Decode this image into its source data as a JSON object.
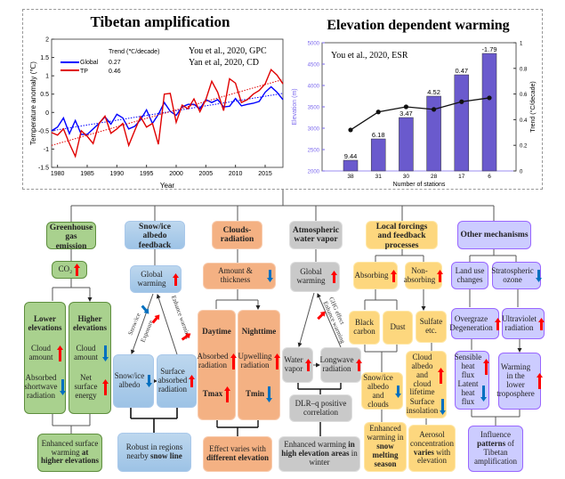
{
  "colors": {
    "up": "#ff0000",
    "down": "#0070c0",
    "global": "#0000ff",
    "tp": "#e00000",
    "bar": "#6a5acd",
    "axis_left": "#7b68ee"
  },
  "chart_data": [
    {
      "type": "line",
      "title": "Tibetan amplification",
      "xlabel": "Year",
      "ylabel": "Temperature anomaly (℃)",
      "xlim": [
        1979,
        2018
      ],
      "ylim": [
        -1.5,
        2
      ],
      "xticks": [
        1980,
        1985,
        1990,
        1995,
        2000,
        2005,
        2010,
        2015
      ],
      "yticks": [
        "-1.5",
        "-1",
        "-0.5",
        "0",
        "0.5",
        "1",
        "1.5",
        "2"
      ],
      "legend_title": "Trend (℃/decade)",
      "legend_position": "top-left",
      "annotations": [
        "You et al., 2020, GPC",
        "Yan et al, 2020, CD"
      ],
      "x_start": 1979,
      "series": [
        {
          "name": "Global",
          "trend": "0.27",
          "trend_line": [
            -0.5,
            0.52
          ],
          "values": [
            -0.5,
            -0.4,
            -0.15,
            -0.58,
            -0.22,
            -0.6,
            -0.6,
            -0.45,
            -0.3,
            -0.12,
            -0.32,
            -0.05,
            -0.15,
            -0.45,
            -0.38,
            -0.2,
            0.07,
            -0.3,
            -0.05,
            0.27,
            0.03,
            -0.08,
            0.15,
            0.22,
            0.22,
            0.1,
            0.35,
            0.27,
            0.35,
            0.15,
            0.17,
            0.38,
            0.18,
            0.22,
            0.25,
            0.3,
            0.55,
            0.7,
            0.55,
            0.35
          ]
        },
        {
          "name": "TP",
          "trend": "0.46",
          "trend_line": [
            -0.9,
            0.9
          ],
          "values": [
            -0.55,
            -0.62,
            -0.45,
            -0.85,
            -1.2,
            -0.5,
            -0.65,
            -0.85,
            -0.3,
            -0.1,
            -0.57,
            -0.45,
            -0.3,
            -0.9,
            -0.5,
            -0.12,
            -0.4,
            -0.3,
            -0.87,
            0.5,
            0.52,
            -0.27,
            0.2,
            0.1,
            0.37,
            0.02,
            0.35,
            0.85,
            0.55,
            0.05,
            0.92,
            0.8,
            0.27,
            0.35,
            0.5,
            0.6,
            0.78,
            1.17,
            1.02,
            0.78
          ]
        }
      ]
    },
    {
      "type": "bar",
      "title": "Elevation dependent warming",
      "xlabel": "Number of stations",
      "ylabel": "Elevation (m)",
      "y2label": "Trend (°C/decade)",
      "ylim": [
        2000,
        5000
      ],
      "y2lim": [
        0,
        1
      ],
      "yticks": [
        "2000",
        "2500",
        "3000",
        "3500",
        "4000",
        "4500",
        "5000"
      ],
      "y2ticks": [
        "0",
        "0.2",
        "0.4",
        "0.6",
        "0.8",
        "1"
      ],
      "annotation": "You et al., 2020, ESR",
      "categories": [
        "38",
        "31",
        "30",
        "28",
        "17",
        "6"
      ],
      "values": [
        2250,
        2750,
        3250,
        3750,
        4250,
        4750
      ],
      "bar_labels": [
        "9.44",
        "6.18",
        "3.47",
        "4.52",
        "0.47",
        "-1.79"
      ],
      "trend": [
        0.32,
        0.46,
        0.5,
        0.48,
        0.54,
        0.57
      ]
    }
  ],
  "flow": {
    "labels": {
      "snowice": "Snow/ice",
      "exposure": "Exposure",
      "enhance1": "Enhance warming",
      "ghg": "GHG effect",
      "enhance2": "Enhance warming"
    },
    "boxes": {
      "ghg": {
        "rows": [
          {
            "segs": [
              {
                "t": "Greenhouse gas emission",
                "b": true
              }
            ]
          }
        ]
      },
      "co2": {
        "rows": [
          {
            "segs": [
              {
                "t": "CO₂"
              }
            ],
            "arrow": "up"
          }
        ]
      },
      "lower": {
        "rows": [
          {
            "segs": [
              {
                "t": "Lower elevations",
                "b": true
              }
            ]
          },
          {
            "segs": [
              {
                "t": "Cloud amount"
              }
            ],
            "arrow": "up"
          },
          {
            "segs": [
              {
                "t": "Absorbed shortwave radiation"
              }
            ],
            "arrow": "down"
          }
        ]
      },
      "higher": {
        "rows": [
          {
            "segs": [
              {
                "t": "Higher elevations",
                "b": true
              }
            ]
          },
          {
            "segs": [
              {
                "t": "Cloud amount"
              }
            ],
            "arrow": "down"
          },
          {
            "segs": [
              {
                "t": "Net surface energy"
              }
            ],
            "arrow": "up"
          }
        ]
      },
      "ghg_result": {
        "rows": [
          {
            "segs": [
              {
                "t": "Enhanced surface warming "
              },
              {
                "t": "at higher elevations",
                "b": true
              }
            ]
          }
        ]
      },
      "snow_title": {
        "rows": [
          {
            "segs": [
              {
                "t": "Snow/ice albedo feedback",
                "b": true
              }
            ]
          }
        ]
      },
      "snow_gw": {
        "rows": [
          {
            "segs": [
              {
                "t": "Global warming"
              }
            ],
            "arrow": "up"
          }
        ]
      },
      "snow_albedo": {
        "rows": [
          {
            "segs": [
              {
                "t": "Snow/ice albedo"
              }
            ],
            "arrow": "down"
          }
        ]
      },
      "surf_abs": {
        "rows": [
          {
            "segs": [
              {
                "t": "Surface absorbed radiation"
              }
            ],
            "arrow": "up"
          }
        ]
      },
      "snow_result": {
        "rows": [
          {
            "segs": [
              {
                "t": "Robust in regions nearby "
              },
              {
                "t": "snow line",
                "b": true
              }
            ]
          }
        ]
      },
      "cloud_title": {
        "rows": [
          {
            "segs": [
              {
                "t": "Clouds-radiation",
                "b": true
              }
            ]
          }
        ]
      },
      "cloud_amt": {
        "rows": [
          {
            "segs": [
              {
                "t": "Amount & thickness"
              }
            ],
            "arrow": "down"
          }
        ]
      },
      "daytime": {
        "rows": [
          {
            "segs": [
              {
                "t": "Daytime",
                "b": true
              }
            ]
          },
          {
            "segs": [
              {
                "t": "Absorbed radiation"
              }
            ],
            "arrow": "up"
          },
          {
            "segs": [
              {
                "t": "Tmax",
                "b": true
              }
            ],
            "arrow": "up"
          }
        ]
      },
      "nighttime": {
        "rows": [
          {
            "segs": [
              {
                "t": "Nighttime",
                "b": true
              }
            ]
          },
          {
            "segs": [
              {
                "t": "Upwelling radiation"
              }
            ],
            "arrow": "up"
          },
          {
            "segs": [
              {
                "t": "Tmin",
                "b": true
              }
            ],
            "arrow": "down"
          }
        ]
      },
      "cloud_result": {
        "rows": [
          {
            "segs": [
              {
                "t": "Effect varies with "
              },
              {
                "t": "different elevation",
                "b": true
              }
            ]
          }
        ]
      },
      "wv_title": {
        "rows": [
          {
            "segs": [
              {
                "t": "Atmospheric water vapor",
                "b": true
              }
            ]
          }
        ]
      },
      "wv_gw": {
        "rows": [
          {
            "segs": [
              {
                "t": "Global warming"
              }
            ],
            "arrow": "up"
          }
        ]
      },
      "water_vapor": {
        "rows": [
          {
            "segs": [
              {
                "t": "Water vapor"
              }
            ],
            "arrow": "up"
          }
        ]
      },
      "longwave": {
        "rows": [
          {
            "segs": [
              {
                "t": "Longwave radiation"
              }
            ],
            "arrow": "up"
          }
        ]
      },
      "dlr": {
        "rows": [
          {
            "segs": [
              {
                "t": "DLR–q positive correlation"
              }
            ]
          }
        ]
      },
      "wv_result": {
        "rows": [
          {
            "segs": [
              {
                "t": "Enhanced warming "
              },
              {
                "t": "in high elevation areas",
                "b": true
              },
              {
                "t": " in winter"
              }
            ]
          }
        ]
      },
      "local_title": {
        "rows": [
          {
            "segs": [
              {
                "t": "Local forcings and feedback processes",
                "b": true
              }
            ]
          }
        ]
      },
      "absorbing": {
        "rows": [
          {
            "segs": [
              {
                "t": "Absorbing"
              }
            ],
            "arrow": "up"
          }
        ]
      },
      "nonabs": {
        "rows": [
          {
            "segs": [
              {
                "t": "Non-absorbing"
              }
            ],
            "arrow": "up"
          }
        ]
      },
      "bc": {
        "rows": [
          {
            "segs": [
              {
                "t": "Black carbon"
              }
            ]
          }
        ]
      },
      "dust": {
        "rows": [
          {
            "segs": [
              {
                "t": "Dust"
              }
            ]
          }
        ]
      },
      "sulfate": {
        "rows": [
          {
            "segs": [
              {
                "t": "Sulfate etc."
              }
            ]
          }
        ]
      },
      "snow_clouds": {
        "rows": [
          {
            "segs": [
              {
                "t": "Snow/ice albedo and clouds"
              }
            ],
            "arrow": "down"
          }
        ]
      },
      "cloud_albedo": {
        "rows": [
          {
            "segs": [
              {
                "t": "Cloud albedo and cloud lifetime"
              }
            ],
            "arrow": "up"
          },
          {
            "segs": [
              {
                "t": "Surface insolation"
              }
            ],
            "arrow": "down"
          }
        ]
      },
      "local_res1": {
        "rows": [
          {
            "segs": [
              {
                "t": "Enhanced warming in "
              },
              {
                "t": "snow melting season",
                "b": true
              }
            ]
          }
        ]
      },
      "local_res2": {
        "rows": [
          {
            "segs": [
              {
                "t": "Aerosol concentration "
              },
              {
                "t": "varies",
                "b": true
              },
              {
                "t": " with elevation"
              }
            ]
          }
        ]
      },
      "other_title": {
        "rows": [
          {
            "segs": [
              {
                "t": "Other mechanisms",
                "b": true
              }
            ]
          }
        ]
      },
      "landuse": {
        "rows": [
          {
            "segs": [
              {
                "t": "Land use changes"
              }
            ]
          }
        ]
      },
      "ozone": {
        "rows": [
          {
            "segs": [
              {
                "t": "Stratospheric ozone"
              }
            ],
            "arrow": "down"
          }
        ]
      },
      "overgraze": {
        "rows": [
          {
            "segs": [
              {
                "t": "Overgraze Degeneration"
              }
            ],
            "arrow": "up"
          }
        ]
      },
      "uv": {
        "rows": [
          {
            "segs": [
              {
                "t": "Ultraviolet radiation"
              }
            ],
            "arrow": "up"
          }
        ]
      },
      "heatflux": {
        "rows": [
          {
            "segs": [
              {
                "t": "Sensible heat flux"
              }
            ],
            "arrow": "up"
          },
          {
            "segs": [
              {
                "t": "Latent heat flux"
              }
            ],
            "arrow": "down"
          }
        ]
      },
      "lowertrop": {
        "rows": [
          {
            "segs": [
              {
                "t": "Warming in the lower troposphere"
              }
            ],
            "arrow": "up"
          }
        ]
      },
      "other_result": {
        "rows": [
          {
            "segs": [
              {
                "t": "Influence "
              },
              {
                "t": "patterns",
                "b": true
              },
              {
                "t": " of Tibetan amplification"
              }
            ]
          }
        ]
      }
    }
  }
}
